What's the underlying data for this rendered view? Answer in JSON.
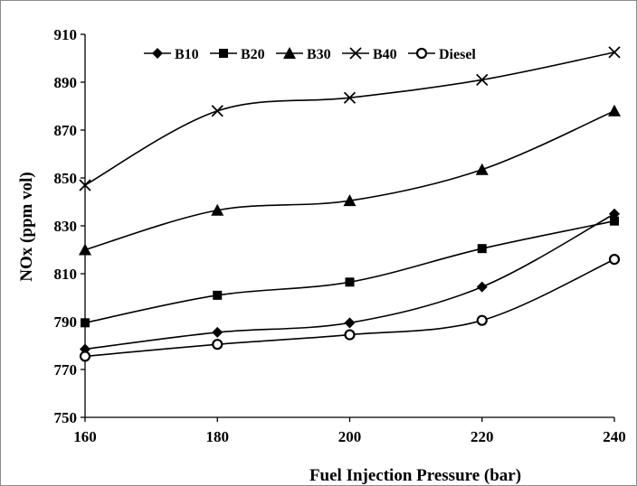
{
  "chart_data": {
    "type": "line",
    "title": "",
    "xlabel": "Fuel Injection Pressure (bar)",
    "ylabel": "NOx (ppm vol)",
    "x": [
      160,
      180,
      200,
      220,
      240
    ],
    "xlim": [
      160,
      240
    ],
    "ylim": [
      750,
      910
    ],
    "xticks": [
      "160",
      "180",
      "200",
      "220",
      "240"
    ],
    "yticks": [
      "750",
      "770",
      "790",
      "810",
      "830",
      "850",
      "870",
      "890",
      "910"
    ],
    "grid": false,
    "legend_position": "top",
    "series": [
      {
        "name": "B10",
        "marker": "diamond",
        "values": [
          778.5,
          785.5,
          789.5,
          804.5,
          835
        ]
      },
      {
        "name": "B20",
        "marker": "square",
        "values": [
          789.5,
          801,
          806.5,
          820.5,
          832
        ]
      },
      {
        "name": "B30",
        "marker": "triangle",
        "values": [
          820,
          836.5,
          840.5,
          853.5,
          878
        ]
      },
      {
        "name": "B40",
        "marker": "x",
        "values": [
          847,
          878,
          883.5,
          891,
          902.5
        ]
      },
      {
        "name": "Diesel",
        "marker": "circle",
        "values": [
          775.5,
          780.5,
          784.5,
          790.5,
          816
        ]
      }
    ]
  }
}
